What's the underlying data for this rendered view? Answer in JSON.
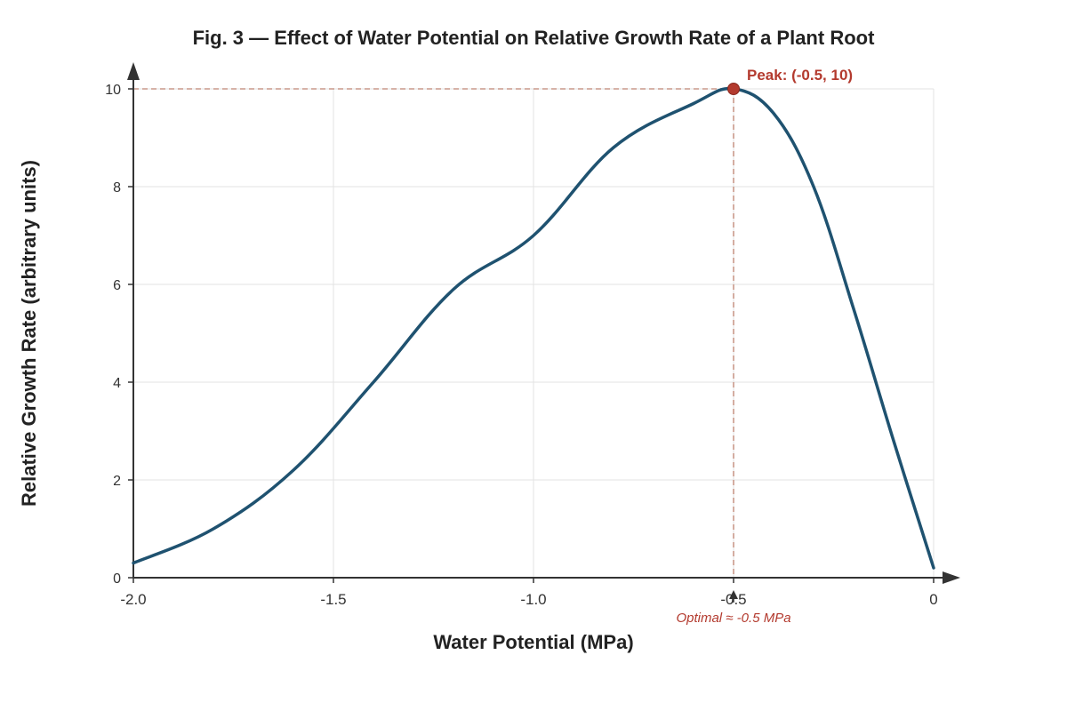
{
  "chart_data": {
    "type": "line",
    "title": "Fig. 3 — Effect of Water Potential on Relative Growth Rate of a Plant Root",
    "xlabel": "Water Potential (MPa)",
    "ylabel": "Relative Growth Rate (arbitrary units)",
    "xlim": [
      -2.0,
      0
    ],
    "ylim": [
      0,
      10
    ],
    "xticks": [
      {
        "value": -2.0,
        "label": "-2.0"
      },
      {
        "value": -1.5,
        "label": "-1.5"
      },
      {
        "value": -1.0,
        "label": "-1.0"
      },
      {
        "value": -0.5,
        "label": "-0.5"
      },
      {
        "value": 0,
        "label": "0"
      }
    ],
    "yticks": [
      {
        "value": 0,
        "label": "0"
      },
      {
        "value": 2,
        "label": "2"
      },
      {
        "value": 4,
        "label": "4"
      },
      {
        "value": 6,
        "label": "6"
      },
      {
        "value": 8,
        "label": "8"
      },
      {
        "value": 10,
        "label": "10"
      }
    ],
    "grid": true,
    "series": [
      {
        "x": [
          -2.0,
          -1.8,
          -1.6,
          -1.4,
          -1.2,
          -1.0,
          -0.8,
          -0.6,
          -0.5,
          -0.4,
          -0.3,
          -0.2,
          -0.1,
          0
        ],
        "y": [
          0.3,
          1.0,
          2.2,
          4.0,
          5.9,
          7.0,
          8.8,
          9.7,
          10.0,
          9.5,
          8.0,
          5.5,
          2.8,
          0.2
        ]
      }
    ],
    "annotations": {
      "peak": {
        "x": -0.5,
        "y": 10,
        "label": "Peak: (-0.5, 10)"
      },
      "optimal": {
        "x": -0.5,
        "label": "Optimal ≈ -0.5 MPa"
      }
    },
    "colors": {
      "line": "#1f5270",
      "peak": "#b33a2e",
      "guide": "#c9998a",
      "grid": "#e3e3e3",
      "axis": "#333333"
    }
  }
}
